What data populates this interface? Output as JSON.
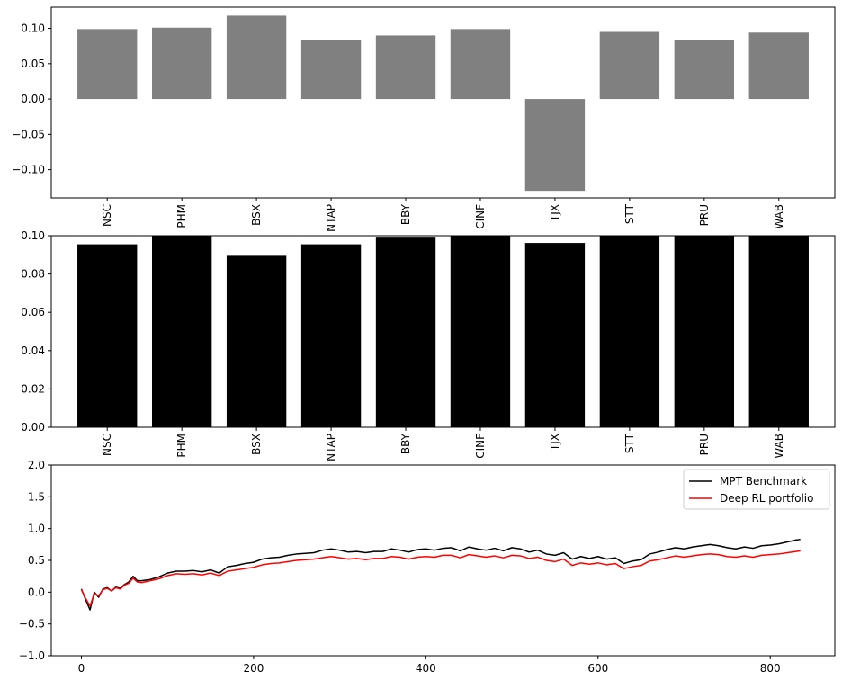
{
  "chart_data": [
    {
      "type": "bar",
      "color": "#808080",
      "categories": [
        "NSC",
        "PHM",
        "BSX",
        "NTAP",
        "BBY",
        "CINF",
        "TJX",
        "STT",
        "PRU",
        "WAB"
      ],
      "values": [
        0.099,
        0.101,
        0.118,
        0.084,
        0.09,
        0.099,
        -0.13,
        0.095,
        0.084,
        0.094
      ],
      "ylim": [
        -0.14,
        0.13
      ],
      "yticks": [
        -0.1,
        -0.05,
        0.0,
        0.05,
        0.1
      ],
      "ytick_labels": [
        "−0.10",
        "−0.05",
        "0.00",
        "0.05",
        "0.10"
      ],
      "grid": false
    },
    {
      "type": "bar",
      "color": "#000000",
      "categories": [
        "NSC",
        "PHM",
        "BSX",
        "NTAP",
        "BBY",
        "CINF",
        "TJX",
        "STT",
        "PRU",
        "WAB"
      ],
      "values": [
        0.0955,
        0.1,
        0.0895,
        0.0955,
        0.099,
        0.1,
        0.0962,
        0.1,
        0.1,
        0.1
      ],
      "ylim": [
        0.0,
        0.1
      ],
      "yticks": [
        0.0,
        0.02,
        0.04,
        0.06,
        0.08,
        0.1
      ],
      "ytick_labels": [
        "0.00",
        "0.02",
        "0.04",
        "0.06",
        "0.08",
        "0.10"
      ],
      "grid": false
    },
    {
      "type": "line",
      "xlim": [
        -35,
        875
      ],
      "ylim": [
        -1.0,
        2.0
      ],
      "xticks": [
        0,
        200,
        400,
        600,
        800
      ],
      "xtick_labels": [
        "0",
        "200",
        "400",
        "600",
        "800"
      ],
      "yticks": [
        -1.0,
        -0.5,
        0.0,
        0.5,
        1.0,
        1.5,
        2.0
      ],
      "ytick_labels": [
        "−1.0",
        "−0.5",
        "0.0",
        "0.5",
        "1.0",
        "1.5",
        "2.0"
      ],
      "legend": "top-right",
      "grid": false,
      "series": [
        {
          "name": "MPT Benchmark",
          "color": "#000000",
          "points": [
            [
              0,
              0.05
            ],
            [
              5,
              -0.12
            ],
            [
              10,
              -0.28
            ],
            [
              15,
              0.0
            ],
            [
              20,
              -0.08
            ],
            [
              25,
              0.05
            ],
            [
              30,
              0.07
            ],
            [
              35,
              0.02
            ],
            [
              40,
              0.08
            ],
            [
              45,
              0.06
            ],
            [
              50,
              0.12
            ],
            [
              55,
              0.16
            ],
            [
              60,
              0.25
            ],
            [
              65,
              0.18
            ],
            [
              70,
              0.18
            ],
            [
              80,
              0.2
            ],
            [
              90,
              0.24
            ],
            [
              100,
              0.3
            ],
            [
              110,
              0.33
            ],
            [
              120,
              0.33
            ],
            [
              130,
              0.34
            ],
            [
              140,
              0.32
            ],
            [
              150,
              0.35
            ],
            [
              160,
              0.3
            ],
            [
              170,
              0.4
            ],
            [
              180,
              0.42
            ],
            [
              190,
              0.45
            ],
            [
              200,
              0.47
            ],
            [
              210,
              0.52
            ],
            [
              220,
              0.54
            ],
            [
              230,
              0.55
            ],
            [
              240,
              0.58
            ],
            [
              250,
              0.6
            ],
            [
              260,
              0.61
            ],
            [
              270,
              0.62
            ],
            [
              280,
              0.66
            ],
            [
              290,
              0.68
            ],
            [
              300,
              0.66
            ],
            [
              310,
              0.63
            ],
            [
              320,
              0.64
            ],
            [
              330,
              0.62
            ],
            [
              340,
              0.64
            ],
            [
              350,
              0.64
            ],
            [
              360,
              0.68
            ],
            [
              370,
              0.66
            ],
            [
              380,
              0.63
            ],
            [
              390,
              0.67
            ],
            [
              400,
              0.68
            ],
            [
              410,
              0.66
            ],
            [
              420,
              0.69
            ],
            [
              430,
              0.7
            ],
            [
              440,
              0.65
            ],
            [
              450,
              0.71
            ],
            [
              460,
              0.68
            ],
            [
              470,
              0.66
            ],
            [
              480,
              0.69
            ],
            [
              490,
              0.65
            ],
            [
              500,
              0.7
            ],
            [
              510,
              0.68
            ],
            [
              520,
              0.63
            ],
            [
              530,
              0.66
            ],
            [
              540,
              0.6
            ],
            [
              550,
              0.58
            ],
            [
              560,
              0.62
            ],
            [
              570,
              0.52
            ],
            [
              580,
              0.56
            ],
            [
              590,
              0.53
            ],
            [
              600,
              0.56
            ],
            [
              610,
              0.52
            ],
            [
              620,
              0.54
            ],
            [
              630,
              0.45
            ],
            [
              640,
              0.49
            ],
            [
              650,
              0.51
            ],
            [
              660,
              0.6
            ],
            [
              670,
              0.63
            ],
            [
              680,
              0.67
            ],
            [
              690,
              0.7
            ],
            [
              700,
              0.68
            ],
            [
              710,
              0.71
            ],
            [
              720,
              0.73
            ],
            [
              730,
              0.75
            ],
            [
              740,
              0.73
            ],
            [
              750,
              0.7
            ],
            [
              760,
              0.68
            ],
            [
              770,
              0.71
            ],
            [
              780,
              0.69
            ],
            [
              790,
              0.73
            ],
            [
              800,
              0.74
            ],
            [
              810,
              0.76
            ],
            [
              820,
              0.79
            ],
            [
              830,
              0.82
            ],
            [
              835,
              0.83
            ]
          ]
        },
        {
          "name": "Deep RL portfolio",
          "color": "#ff0000",
          "points": [
            [
              0,
              0.04
            ],
            [
              5,
              -0.1
            ],
            [
              10,
              -0.22
            ],
            [
              15,
              -0.02
            ],
            [
              20,
              -0.06
            ],
            [
              25,
              0.04
            ],
            [
              30,
              0.06
            ],
            [
              35,
              0.02
            ],
            [
              40,
              0.07
            ],
            [
              45,
              0.05
            ],
            [
              50,
              0.11
            ],
            [
              55,
              0.14
            ],
            [
              60,
              0.22
            ],
            [
              65,
              0.16
            ],
            [
              70,
              0.15
            ],
            [
              80,
              0.18
            ],
            [
              90,
              0.21
            ],
            [
              100,
              0.26
            ],
            [
              110,
              0.29
            ],
            [
              120,
              0.28
            ],
            [
              130,
              0.29
            ],
            [
              140,
              0.27
            ],
            [
              150,
              0.3
            ],
            [
              160,
              0.26
            ],
            [
              170,
              0.33
            ],
            [
              180,
              0.35
            ],
            [
              190,
              0.37
            ],
            [
              200,
              0.39
            ],
            [
              210,
              0.43
            ],
            [
              220,
              0.45
            ],
            [
              230,
              0.46
            ],
            [
              240,
              0.48
            ],
            [
              250,
              0.5
            ],
            [
              260,
              0.51
            ],
            [
              270,
              0.52
            ],
            [
              280,
              0.54
            ],
            [
              290,
              0.56
            ],
            [
              300,
              0.54
            ],
            [
              310,
              0.52
            ],
            [
              320,
              0.53
            ],
            [
              330,
              0.51
            ],
            [
              340,
              0.53
            ],
            [
              350,
              0.53
            ],
            [
              360,
              0.56
            ],
            [
              370,
              0.55
            ],
            [
              380,
              0.52
            ],
            [
              390,
              0.55
            ],
            [
              400,
              0.56
            ],
            [
              410,
              0.55
            ],
            [
              420,
              0.58
            ],
            [
              430,
              0.58
            ],
            [
              440,
              0.54
            ],
            [
              450,
              0.59
            ],
            [
              460,
              0.57
            ],
            [
              470,
              0.55
            ],
            [
              480,
              0.57
            ],
            [
              490,
              0.54
            ],
            [
              500,
              0.58
            ],
            [
              510,
              0.57
            ],
            [
              520,
              0.53
            ],
            [
              530,
              0.55
            ],
            [
              540,
              0.5
            ],
            [
              550,
              0.48
            ],
            [
              560,
              0.52
            ],
            [
              570,
              0.42
            ],
            [
              580,
              0.46
            ],
            [
              590,
              0.44
            ],
            [
              600,
              0.46
            ],
            [
              610,
              0.43
            ],
            [
              620,
              0.45
            ],
            [
              630,
              0.37
            ],
            [
              640,
              0.4
            ],
            [
              650,
              0.42
            ],
            [
              660,
              0.49
            ],
            [
              670,
              0.51
            ],
            [
              680,
              0.54
            ],
            [
              690,
              0.57
            ],
            [
              700,
              0.55
            ],
            [
              710,
              0.57
            ],
            [
              720,
              0.59
            ],
            [
              730,
              0.6
            ],
            [
              740,
              0.59
            ],
            [
              750,
              0.56
            ],
            [
              760,
              0.55
            ],
            [
              770,
              0.57
            ],
            [
              780,
              0.55
            ],
            [
              790,
              0.58
            ],
            [
              800,
              0.59
            ],
            [
              810,
              0.6
            ],
            [
              820,
              0.62
            ],
            [
              830,
              0.64
            ],
            [
              835,
              0.65
            ]
          ]
        }
      ]
    }
  ]
}
